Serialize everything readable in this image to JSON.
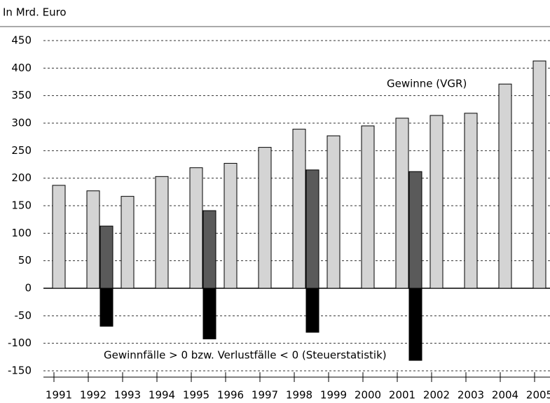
{
  "chart_data": {
    "type": "bar",
    "y_axis_label": "In Mrd. Euro",
    "categories": [
      "1991",
      "1992",
      "1993",
      "1994",
      "1995",
      "1996",
      "1997",
      "1998",
      "1999",
      "2000",
      "2001",
      "2002",
      "2003",
      "2004",
      "2005"
    ],
    "series": [
      {
        "name": "Gewinne (VGR)",
        "color": "#d4d4d4",
        "values": [
          187,
          177,
          167,
          203,
          219,
          227,
          256,
          289,
          277,
          295,
          309,
          314,
          318,
          371,
          413
        ]
      },
      {
        "name": "Gewinnfälle > 0 bzw. Verlustfälle < 0 (Steuerstatistik)",
        "color": "#5a5a5a",
        "loss_color": "#000000",
        "values": [
          null,
          113,
          null,
          null,
          141,
          null,
          null,
          215,
          null,
          null,
          212,
          null,
          null,
          null,
          null
        ],
        "loss_values": [
          null,
          -69,
          null,
          null,
          -92,
          null,
          null,
          -80,
          null,
          null,
          -131,
          null,
          null,
          null,
          null
        ]
      }
    ],
    "ylim": [
      -150,
      450
    ],
    "yticks": [
      -150,
      -100,
      -50,
      0,
      50,
      100,
      150,
      200,
      250,
      300,
      350,
      400,
      450
    ],
    "grid": true
  }
}
